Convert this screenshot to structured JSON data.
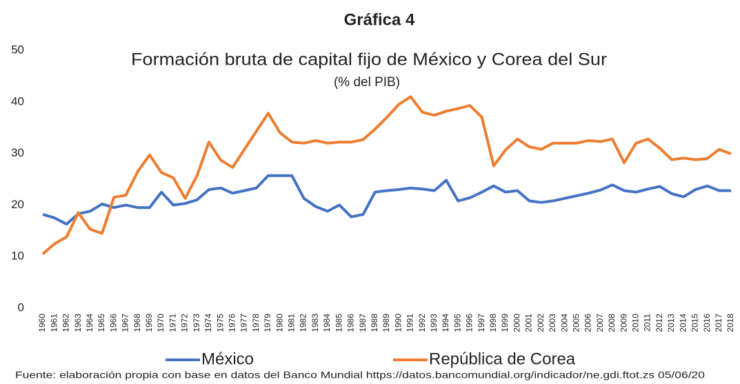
{
  "heading": "Gráfica 4",
  "source": "Fuente: elaboración  propia  con base en datos del Banco Mundial  https://datos.bancomundial.org/indicador/ne.gdi.ftot.zs 05/06/20",
  "chart_data": {
    "type": "line",
    "title": "Formación bruta de capital fijo de México  y Corea del Sur",
    "subtitle": "(% del PIB)",
    "categories": [
      "1960",
      "1961",
      "1962",
      "1963",
      "1964",
      "1965",
      "1966",
      "1967",
      "1968",
      "1969",
      "1970",
      "1971",
      "1972",
      "1973",
      "1974",
      "1975",
      "1976",
      "1977",
      "1978",
      "1979",
      "1980",
      "1981",
      "1982",
      "1983",
      "1984",
      "1985",
      "1986",
      "1987",
      "1988",
      "1989",
      "1990",
      "1991",
      "1992",
      "1993",
      "1994",
      "1995",
      "1996",
      "1997",
      "1998",
      "1999",
      "2000",
      "2001",
      "2002",
      "2003",
      "2004",
      "2005",
      "2006",
      "2007",
      "2008",
      "2009",
      "2010",
      "2011",
      "2012",
      "2013",
      "2014",
      "2015",
      "2016",
      "2017",
      "2018"
    ],
    "series": [
      {
        "name": "México",
        "color": "#4472c4",
        "values": [
          18.2,
          17.5,
          16.3,
          18.3,
          18.8,
          20.2,
          19.5,
          20.0,
          19.5,
          19.5,
          22.5,
          20.0,
          20.3,
          21.0,
          23.0,
          23.3,
          22.3,
          22.8,
          23.3,
          25.7,
          25.7,
          25.7,
          21.3,
          19.7,
          18.8,
          20.0,
          17.7,
          18.2,
          22.5,
          22.8,
          23.0,
          23.3,
          23.1,
          22.8,
          24.8,
          20.8,
          21.4,
          22.5,
          23.7,
          22.5,
          22.8,
          20.8,
          20.5,
          20.8,
          21.3,
          21.8,
          22.3,
          22.9,
          23.9,
          22.8,
          22.5,
          23.1,
          23.6,
          22.2,
          21.6,
          23.0,
          23.7,
          22.8,
          22.8
        ]
      },
      {
        "name": "República de Corea",
        "color": "#ed7d31",
        "values": [
          10.5,
          12.5,
          13.8,
          18.5,
          15.3,
          14.5,
          21.5,
          21.9,
          26.5,
          29.7,
          26.3,
          25.3,
          21.3,
          25.7,
          32.2,
          28.7,
          27.3,
          30.8,
          34.3,
          37.8,
          34.0,
          32.2,
          32.0,
          32.5,
          32.0,
          32.2,
          32.2,
          32.7,
          34.7,
          37.0,
          39.5,
          41.0,
          38.0,
          37.4,
          38.2,
          38.7,
          39.3,
          37.0,
          27.6,
          30.7,
          32.8,
          31.3,
          30.8,
          32.0,
          32.0,
          32.0,
          32.5,
          32.3,
          32.8,
          28.2,
          32.0,
          32.8,
          31.0,
          28.8,
          29.1,
          28.8,
          29.0,
          30.8,
          29.9
        ]
      }
    ],
    "ylim": [
      0,
      50
    ],
    "yticks": [
      0,
      10,
      20,
      30,
      40,
      50
    ],
    "grid": false,
    "legend": "bottom"
  }
}
